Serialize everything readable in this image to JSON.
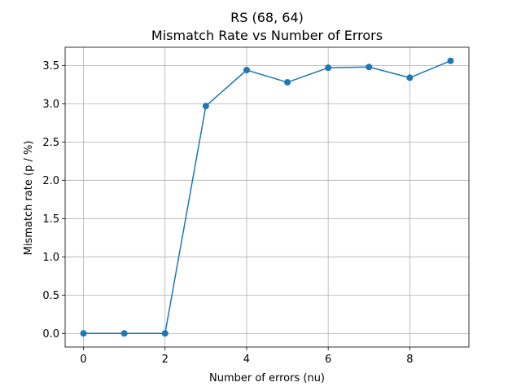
{
  "chart_data": {
    "type": "line",
    "title_line1": "RS (68, 64)",
    "title_line2": "Mismatch Rate vs Number of Errors",
    "xlabel": "Number of errors (nu)",
    "ylabel": "Mismatch rate (p / %)",
    "xlim": [
      -0.45,
      9.45
    ],
    "ylim": [
      -0.178,
      3.738
    ],
    "xticks": [
      0,
      2,
      4,
      6,
      8
    ],
    "xtick_labels": [
      "0",
      "2",
      "4",
      "6",
      "8"
    ],
    "yticks": [
      0.0,
      0.5,
      1.0,
      1.5,
      2.0,
      2.5,
      3.0,
      3.5
    ],
    "ytick_labels": [
      "0.0",
      "0.5",
      "1.0",
      "1.5",
      "2.0",
      "2.5",
      "3.0",
      "3.5"
    ],
    "grid": true,
    "series": [
      {
        "x": [
          0,
          1,
          2,
          3,
          4,
          5,
          6,
          7,
          8,
          9
        ],
        "y": [
          0.0,
          0.0,
          0.0,
          2.97,
          3.44,
          3.28,
          3.47,
          3.48,
          3.34,
          3.56
        ],
        "color": "#1f77b4",
        "marker": "circle"
      }
    ]
  }
}
